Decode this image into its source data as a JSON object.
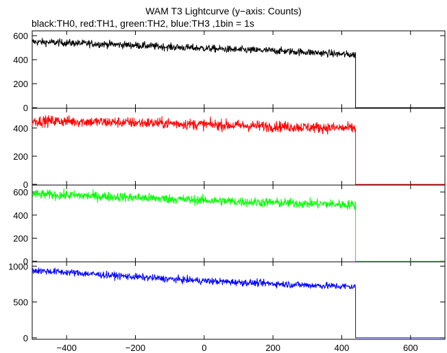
{
  "chart_data": {
    "type": "line",
    "title": "WAM T3 Lightcurve (y−axis: Counts)",
    "subtitle": "black:TH0, red:TH1, green:TH2, blue:TH3 ,1bin = 1s",
    "xlim": [
      -500,
      700
    ],
    "x_ticks": [
      -400,
      -200,
      0,
      200,
      400,
      600
    ],
    "x_tick_labels": [
      "−400",
      "−200",
      "0",
      "200",
      "400",
      "600"
    ],
    "grid": false,
    "panels": [
      {
        "series": "TH0",
        "color": "#000000",
        "ylim": [
          -5,
          640
        ],
        "y_ticks": [
          0,
          200,
          400,
          600
        ],
        "x": [
          -500,
          -400,
          -300,
          -200,
          -100,
          0,
          100,
          200,
          300,
          400,
          440,
          441,
          700
        ],
        "y": [
          548,
          540,
          530,
          520,
          505,
          495,
          482,
          475,
          462,
          445,
          440,
          0,
          0
        ],
        "noise": 22
      },
      {
        "series": "TH1",
        "color": "#ff0000",
        "ylim": [
          -5,
          540
        ],
        "y_ticks": [
          0,
          200,
          400
        ],
        "x": [
          -500,
          -400,
          -300,
          -200,
          -100,
          0,
          100,
          200,
          300,
          400,
          440,
          441,
          700
        ],
        "y": [
          450,
          448,
          443,
          438,
          433,
          425,
          418,
          412,
          405,
          400,
          398,
          0,
          0
        ],
        "noise": 28
      },
      {
        "series": "TH2",
        "color": "#00ff00",
        "ylim": [
          -5,
          660
        ],
        "y_ticks": [
          0,
          200,
          400,
          600
        ],
        "x": [
          -500,
          -400,
          -300,
          -200,
          -100,
          0,
          100,
          200,
          300,
          400,
          440,
          441,
          700
        ],
        "y": [
          580,
          572,
          562,
          552,
          540,
          528,
          516,
          508,
          500,
          492,
          488,
          0,
          0
        ],
        "noise": 30
      },
      {
        "series": "TH3",
        "color": "#0000ff",
        "ylim": [
          -20,
          1060
        ],
        "y_ticks": [
          0,
          500,
          1000
        ],
        "x": [
          -500,
          -400,
          -300,
          -200,
          -100,
          0,
          100,
          200,
          300,
          400,
          440,
          441,
          700
        ],
        "y": [
          940,
          915,
          880,
          850,
          820,
          795,
          775,
          755,
          735,
          718,
          712,
          0,
          0
        ],
        "noise": 35
      }
    ]
  }
}
